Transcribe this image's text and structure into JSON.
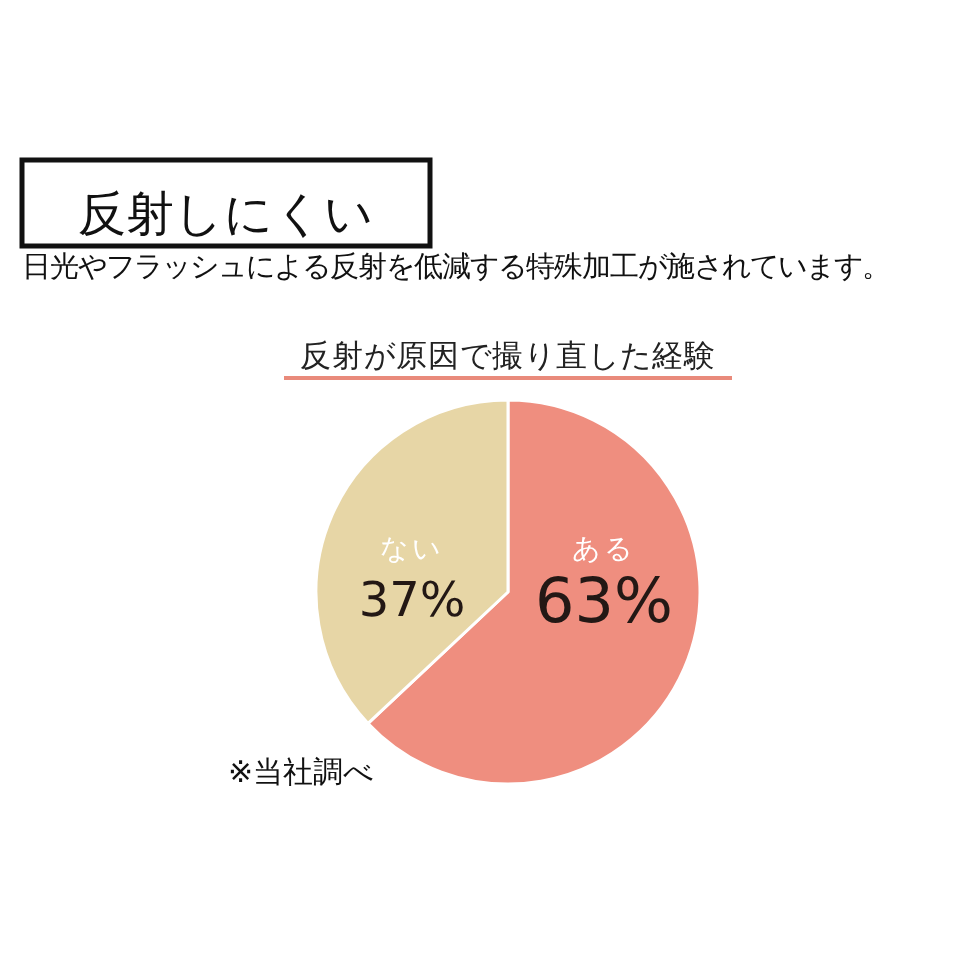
{
  "chart_data": {
    "type": "pie",
    "title": "反射が原因で撮り直した経験",
    "categories": [
      "ある",
      "ない"
    ],
    "values": [
      63,
      37
    ],
    "colors": [
      "#ef8e7f",
      "#e7d6a6"
    ],
    "value_labels": [
      "63%",
      "37%"
    ],
    "annotations": [
      "反射しにくい",
      "日光やフラッシュによる反射を低減する特殊加工が施されています。",
      "※当社調べ"
    ]
  }
}
